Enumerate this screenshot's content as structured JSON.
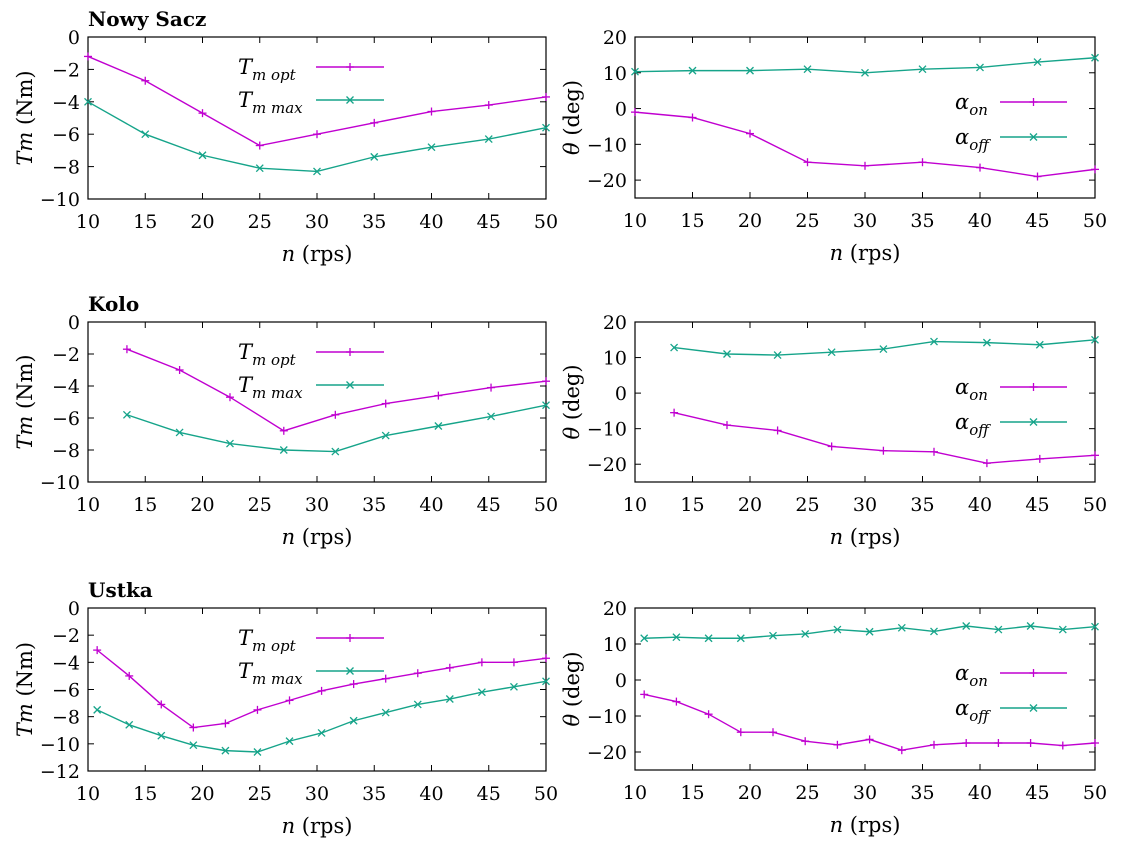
{
  "colors": {
    "purple": "#c000d0",
    "green": "#16a48a"
  },
  "chart_data": [
    {
      "type": "line",
      "title": "Nowy Sacz",
      "xlabel": "n (rps)",
      "ylabel": "Tm (Nm)",
      "xlim": [
        10,
        50
      ],
      "ylim": [
        -10,
        0
      ],
      "xticks": [
        10,
        15,
        20,
        25,
        30,
        35,
        40,
        45,
        50
      ],
      "yticks": [
        0,
        -2,
        -4,
        -6,
        -8,
        -10
      ],
      "legend_position": "top-center",
      "series": [
        {
          "name": "T",
          "sub": "m opt",
          "color": "purple",
          "marker": "plus",
          "x": [
            10,
            15,
            20,
            25,
            30,
            35,
            40,
            45,
            50
          ],
          "y": [
            -1.2,
            -2.7,
            -4.7,
            -6.7,
            -6.0,
            -5.3,
            -4.6,
            -4.2,
            -3.7
          ]
        },
        {
          "name": "T",
          "sub": "m max",
          "color": "green",
          "marker": "cross",
          "x": [
            10,
            15,
            20,
            25,
            30,
            35,
            40,
            45,
            50
          ],
          "y": [
            -4.0,
            -6.0,
            -7.3,
            -8.1,
            -8.3,
            -7.4,
            -6.8,
            -6.3,
            -5.6
          ]
        }
      ]
    },
    {
      "type": "line",
      "title": "",
      "xlabel": "n (rps)",
      "ylabel": "θ (deg)",
      "xlim": [
        10,
        50
      ],
      "ylim": [
        -25,
        20
      ],
      "xticks": [
        10,
        15,
        20,
        25,
        30,
        35,
        40,
        45,
        50
      ],
      "yticks": [
        20,
        10,
        0,
        -10,
        -20
      ],
      "legend_position": "right",
      "series": [
        {
          "name": "α",
          "sub": "on",
          "color": "purple",
          "marker": "plus",
          "x": [
            10,
            15,
            20,
            25,
            30,
            35,
            40,
            45,
            50
          ],
          "y": [
            -1,
            -2.5,
            -7,
            -15,
            -16,
            -15,
            -16.5,
            -19,
            -17
          ]
        },
        {
          "name": "α",
          "sub": "off",
          "color": "green",
          "marker": "cross",
          "x": [
            10,
            15,
            20,
            25,
            30,
            35,
            40,
            45,
            50
          ],
          "y": [
            10.3,
            10.6,
            10.6,
            11,
            10,
            11,
            11.5,
            13,
            14.2
          ]
        }
      ]
    },
    {
      "type": "line",
      "title": "Kolo",
      "xlabel": "n (rps)",
      "ylabel": "Tm (Nm)",
      "xlim": [
        10,
        50
      ],
      "ylim": [
        -10,
        0
      ],
      "xticks": [
        10,
        15,
        20,
        25,
        30,
        35,
        40,
        45,
        50
      ],
      "yticks": [
        0,
        -2,
        -4,
        -6,
        -8,
        -10
      ],
      "legend_position": "top-center",
      "series": [
        {
          "name": "T",
          "sub": "m opt",
          "color": "purple",
          "marker": "plus",
          "x": [
            13.4,
            18,
            22.4,
            27.1,
            31.6,
            36,
            40.6,
            45.2,
            50
          ],
          "y": [
            -1.7,
            -3.0,
            -4.7,
            -6.8,
            -5.8,
            -5.1,
            -4.6,
            -4.1,
            -3.7
          ]
        },
        {
          "name": "T",
          "sub": "m max",
          "color": "green",
          "marker": "cross",
          "x": [
            13.4,
            18,
            22.4,
            27.1,
            31.6,
            36,
            40.6,
            45.2,
            50
          ],
          "y": [
            -5.8,
            -6.9,
            -7.6,
            -8.0,
            -8.1,
            -7.1,
            -6.5,
            -5.9,
            -5.2
          ]
        }
      ]
    },
    {
      "type": "line",
      "title": "",
      "xlabel": "n (rps)",
      "ylabel": "θ (deg)",
      "xlim": [
        10,
        50
      ],
      "ylim": [
        -25,
        20
      ],
      "xticks": [
        10,
        15,
        20,
        25,
        30,
        35,
        40,
        45,
        50
      ],
      "yticks": [
        20,
        10,
        0,
        -10,
        -20
      ],
      "legend_position": "right",
      "series": [
        {
          "name": "α",
          "sub": "on",
          "color": "purple",
          "marker": "plus",
          "x": [
            13.4,
            18,
            22.4,
            27.1,
            31.6,
            36,
            40.6,
            45.2,
            50
          ],
          "y": [
            -5.5,
            -9,
            -10.5,
            -15,
            -16.2,
            -16.5,
            -19.7,
            -18.5,
            -17.5
          ]
        },
        {
          "name": "α",
          "sub": "off",
          "color": "green",
          "marker": "cross",
          "x": [
            13.4,
            18,
            22.4,
            27.1,
            31.6,
            36,
            40.6,
            45.2,
            50
          ],
          "y": [
            12.8,
            11,
            10.7,
            11.5,
            12.4,
            14.5,
            14.2,
            13.6,
            15
          ]
        }
      ]
    },
    {
      "type": "line",
      "title": "Ustka",
      "xlabel": "n (rps)",
      "ylabel": "Tm (Nm)",
      "xlim": [
        10,
        50
      ],
      "ylim": [
        -12,
        0
      ],
      "xticks": [
        10,
        15,
        20,
        25,
        30,
        35,
        40,
        45,
        50
      ],
      "yticks": [
        0,
        -2,
        -4,
        -6,
        -8,
        -10,
        -12
      ],
      "legend_position": "top-center",
      "series": [
        {
          "name": "T",
          "sub": "m opt",
          "color": "purple",
          "marker": "plus",
          "x": [
            10.8,
            13.6,
            16.4,
            19.2,
            22,
            24.8,
            27.6,
            30.4,
            33.2,
            36,
            38.8,
            41.6,
            44.4,
            47.2,
            50
          ],
          "y": [
            -3.1,
            -5.0,
            -7.1,
            -8.8,
            -8.5,
            -7.5,
            -6.8,
            -6.1,
            -5.6,
            -5.2,
            -4.8,
            -4.4,
            -4.0,
            -4.0,
            -3.7
          ]
        },
        {
          "name": "T",
          "sub": "m max",
          "color": "green",
          "marker": "cross",
          "x": [
            10.8,
            13.6,
            16.4,
            19.2,
            22,
            24.8,
            27.6,
            30.4,
            33.2,
            36,
            38.8,
            41.6,
            44.4,
            47.2,
            50
          ],
          "y": [
            -7.5,
            -8.6,
            -9.4,
            -10.1,
            -10.5,
            -10.6,
            -9.8,
            -9.2,
            -8.3,
            -7.7,
            -7.1,
            -6.7,
            -6.2,
            -5.8,
            -5.4
          ]
        }
      ]
    },
    {
      "type": "line",
      "title": "",
      "xlabel": "n (rps)",
      "ylabel": "θ (deg)",
      "xlim": [
        10,
        50
      ],
      "ylim": [
        -25,
        20
      ],
      "xticks": [
        10,
        15,
        20,
        25,
        30,
        35,
        40,
        45,
        50
      ],
      "yticks": [
        20,
        10,
        0,
        -10,
        -20
      ],
      "legend_position": "right",
      "series": [
        {
          "name": "α",
          "sub": "on",
          "color": "purple",
          "marker": "plus",
          "x": [
            10.8,
            13.6,
            16.4,
            19.2,
            22,
            24.8,
            27.6,
            30.4,
            33.2,
            36,
            38.8,
            41.6,
            44.4,
            47.2,
            50
          ],
          "y": [
            -4,
            -6,
            -9.5,
            -14.5,
            -14.5,
            -17,
            -18,
            -16.5,
            -19.5,
            -18,
            -17.5,
            -17.5,
            -17.5,
            -18.2,
            -17.5
          ]
        },
        {
          "name": "α",
          "sub": "off",
          "color": "green",
          "marker": "cross",
          "x": [
            10.8,
            13.6,
            16.4,
            19.2,
            22,
            24.8,
            27.6,
            30.4,
            33.2,
            36,
            38.8,
            41.6,
            44.4,
            47.2,
            50
          ],
          "y": [
            11.6,
            11.9,
            11.6,
            11.6,
            12.3,
            12.8,
            14,
            13.4,
            14.5,
            13.5,
            15,
            14,
            15,
            14,
            14.8
          ]
        }
      ]
    }
  ]
}
